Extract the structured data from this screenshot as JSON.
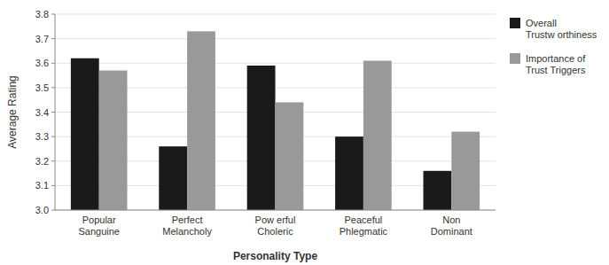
{
  "chart_data": {
    "type": "bar",
    "xlabel": "Personality Type",
    "ylabel": "Average Rating",
    "categories": [
      "Popular\nSanguine",
      "Perfect\nMelancholy",
      "Pow erful\nCholeric",
      "Peaceful\nPhlegmatic",
      "Non\nDominant"
    ],
    "series": [
      {
        "name": "Overall\nTrustw orthiness",
        "color": "#1a1a1a",
        "values": [
          3.62,
          3.26,
          3.59,
          3.3,
          3.16
        ]
      },
      {
        "name": "Importance of\nTrust Triggers",
        "color": "#999999",
        "values": [
          3.57,
          3.73,
          3.44,
          3.61,
          3.32
        ]
      }
    ],
    "ylim": [
      3.0,
      3.8
    ],
    "yticks": [
      {
        "value": 3.0,
        "label": "3.0"
      },
      3.1,
      3.2,
      3.3,
      3.4,
      3.5,
      3.6,
      3.7,
      3.8
    ],
    "grid": true,
    "legend": "upper right"
  }
}
